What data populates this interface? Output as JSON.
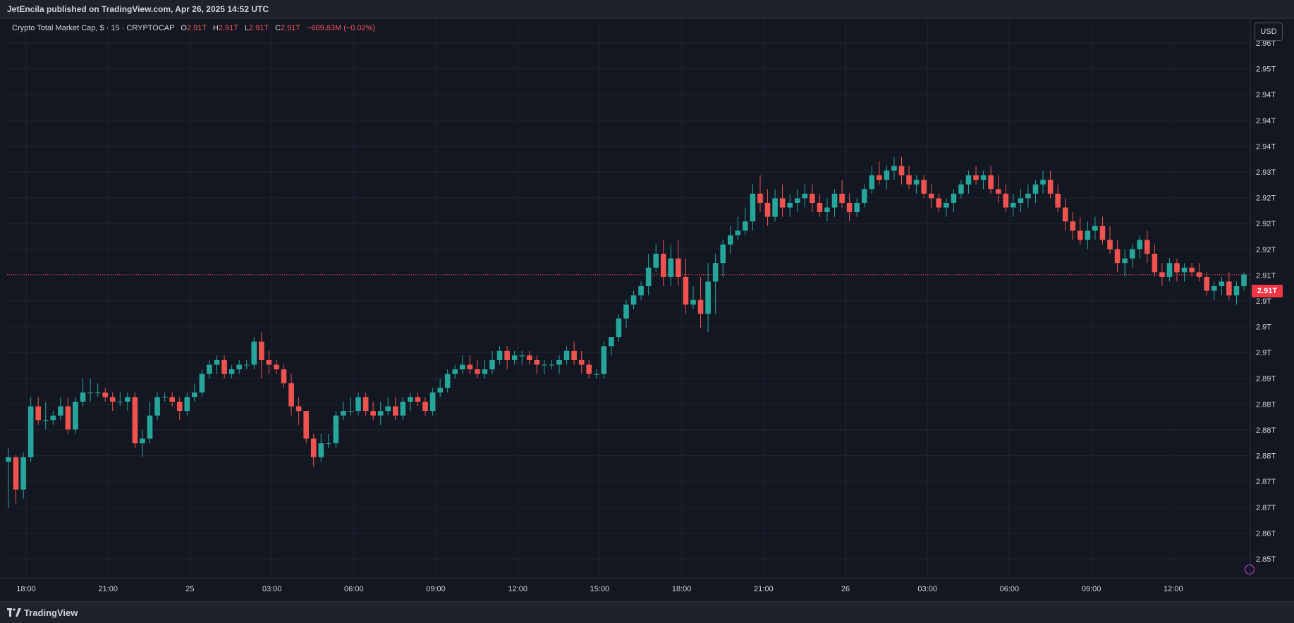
{
  "header": {
    "published_text": "JetEncila published on TradingView.com, Apr 26, 2025 14:52 UTC"
  },
  "legend": {
    "symbol": "Crypto Total Market Cap, $ · 15 · CRYPTOCAP",
    "o_label": "O",
    "o_value": "2.91T",
    "h_label": "H",
    "h_value": "2.91T",
    "l_label": "L",
    "l_value": "2.91T",
    "c_label": "C",
    "c_value": "2.91T",
    "change": "−609.83M (−0.02%)"
  },
  "currency": "USD",
  "last_price_label": "2.91T",
  "footer": {
    "brand": "TradingView"
  },
  "colors": {
    "up": "#26a69a",
    "down": "#ef5350",
    "background": "#131722",
    "grid": "#1f2430",
    "axis_text": "#d1d4dc",
    "last_price_line": "#f23645"
  },
  "chart_data": {
    "type": "candlestick",
    "symbol": "CRYPTOCAP:TOTAL",
    "interval": "15",
    "x_ticks": [
      "18:00",
      "21:00",
      "25",
      "03:00",
      "06:00",
      "09:00",
      "12:00",
      "15:00",
      "18:00",
      "21:00",
      "26",
      "03:00",
      "06:00",
      "09:00",
      "12:00"
    ],
    "y_ticks": [
      "2.96T",
      "2.95T",
      "2.94T",
      "2.94T",
      "2.94T",
      "2.93T",
      "2.92T",
      "2.92T",
      "2.92T",
      "2.91T",
      "2.9T",
      "2.9T",
      "2.9T",
      "2.89T",
      "2.88T",
      "2.88T",
      "2.88T",
      "2.87T",
      "2.87T",
      "2.86T",
      "2.85T"
    ],
    "y_units": "T",
    "last_price": 2.9105,
    "price_range": [
      2.849,
      2.9606
    ],
    "grid": true,
    "candles": [
      [
        2.87,
        2.873,
        2.86,
        2.871
      ],
      [
        2.871,
        2.8715,
        2.861,
        2.864
      ],
      [
        2.864,
        2.872,
        2.862,
        2.871
      ],
      [
        2.871,
        2.884,
        2.87,
        2.882
      ],
      [
        2.882,
        2.884,
        2.878,
        2.879
      ],
      [
        2.879,
        2.883,
        2.877,
        2.879
      ],
      [
        2.879,
        2.881,
        2.878,
        2.88
      ],
      [
        2.88,
        2.884,
        2.879,
        2.882
      ],
      [
        2.882,
        2.884,
        2.876,
        2.877
      ],
      [
        2.877,
        2.884,
        2.876,
        2.883
      ],
      [
        2.883,
        2.888,
        2.882,
        2.885
      ],
      [
        2.885,
        2.888,
        2.883,
        2.885
      ],
      [
        2.885,
        2.887,
        2.884,
        2.885
      ],
      [
        2.885,
        2.886,
        2.883,
        2.884
      ],
      [
        2.884,
        2.885,
        2.881,
        2.883
      ],
      [
        2.883,
        2.885,
        2.882,
        2.883
      ],
      [
        2.883,
        2.885,
        2.881,
        2.884
      ],
      [
        2.884,
        2.885,
        2.873,
        2.874
      ],
      [
        2.874,
        2.877,
        2.871,
        2.875
      ],
      [
        2.875,
        2.883,
        2.874,
        2.88
      ],
      [
        2.88,
        2.885,
        2.879,
        2.884
      ],
      [
        2.884,
        2.885,
        2.883,
        2.884
      ],
      [
        2.884,
        2.885,
        2.882,
        2.883
      ],
      [
        2.883,
        2.884,
        2.879,
        2.881
      ],
      [
        2.881,
        2.885,
        2.88,
        2.884
      ],
      [
        2.884,
        2.887,
        2.883,
        2.885
      ],
      [
        2.885,
        2.89,
        2.884,
        2.889
      ],
      [
        2.889,
        2.892,
        2.888,
        2.891
      ],
      [
        2.891,
        2.893,
        2.889,
        2.892
      ],
      [
        2.892,
        2.893,
        2.888,
        2.889
      ],
      [
        2.889,
        2.891,
        2.888,
        2.89
      ],
      [
        2.89,
        2.892,
        2.889,
        2.891
      ],
      [
        2.891,
        2.892,
        2.89,
        2.891
      ],
      [
        2.891,
        2.897,
        2.89,
        2.896
      ],
      [
        2.896,
        2.898,
        2.888,
        2.892
      ],
      [
        2.892,
        2.894,
        2.889,
        2.891
      ],
      [
        2.891,
        2.892,
        2.889,
        2.89
      ],
      [
        2.89,
        2.891,
        2.886,
        2.887
      ],
      [
        2.887,
        2.889,
        2.88,
        2.882
      ],
      [
        2.882,
        2.884,
        2.878,
        2.881
      ],
      [
        2.881,
        2.881,
        2.874,
        2.875
      ],
      [
        2.875,
        2.876,
        2.869,
        2.871
      ],
      [
        2.871,
        2.876,
        2.87,
        2.874
      ],
      [
        2.874,
        2.876,
        2.873,
        2.874
      ],
      [
        2.874,
        2.881,
        2.873,
        2.88
      ],
      [
        2.88,
        2.883,
        2.879,
        2.881
      ],
      [
        2.881,
        2.884,
        2.88,
        2.881
      ],
      [
        2.881,
        2.885,
        2.88,
        2.884
      ],
      [
        2.884,
        2.885,
        2.88,
        2.881
      ],
      [
        2.881,
        2.883,
        2.879,
        2.88
      ],
      [
        2.88,
        2.883,
        2.878,
        2.881
      ],
      [
        2.881,
        2.884,
        2.88,
        2.882
      ],
      [
        2.882,
        2.884,
        2.879,
        2.88
      ],
      [
        2.88,
        2.884,
        2.879,
        2.883
      ],
      [
        2.883,
        2.885,
        2.881,
        2.884
      ],
      [
        2.884,
        2.885,
        2.882,
        2.883
      ],
      [
        2.883,
        2.884,
        2.88,
        2.881
      ],
      [
        2.881,
        2.886,
        2.88,
        2.885
      ],
      [
        2.885,
        2.888,
        2.884,
        2.886
      ],
      [
        2.886,
        2.89,
        2.885,
        2.889
      ],
      [
        2.889,
        2.891,
        2.888,
        2.89
      ],
      [
        2.89,
        2.893,
        2.889,
        2.891
      ],
      [
        2.891,
        2.893,
        2.889,
        2.89
      ],
      [
        2.89,
        2.892,
        2.888,
        2.889
      ],
      [
        2.889,
        2.892,
        2.888,
        2.89
      ],
      [
        2.89,
        2.894,
        2.889,
        2.892
      ],
      [
        2.892,
        2.895,
        2.891,
        2.894
      ],
      [
        2.894,
        2.895,
        2.89,
        2.892
      ],
      [
        2.892,
        2.894,
        2.891,
        2.893
      ],
      [
        2.893,
        2.894,
        2.891,
        2.893
      ],
      [
        2.893,
        2.894,
        2.891,
        2.892
      ],
      [
        2.892,
        2.893,
        2.889,
        2.891
      ],
      [
        2.891,
        2.892,
        2.889,
        2.891
      ],
      [
        2.891,
        2.892,
        2.89,
        2.891
      ],
      [
        2.891,
        2.893,
        2.889,
        2.892
      ],
      [
        2.892,
        2.895,
        2.891,
        2.894
      ],
      [
        2.894,
        2.896,
        2.891,
        2.892
      ],
      [
        2.892,
        2.894,
        2.889,
        2.891
      ],
      [
        2.891,
        2.892,
        2.888,
        2.889
      ],
      [
        2.889,
        2.89,
        2.888,
        2.889
      ],
      [
        2.889,
        2.896,
        2.888,
        2.895
      ],
      [
        2.895,
        2.897,
        2.893,
        2.897
      ],
      [
        2.897,
        2.902,
        2.896,
        2.901
      ],
      [
        2.901,
        2.905,
        2.899,
        2.904
      ],
      [
        2.904,
        2.907,
        2.903,
        2.906
      ],
      [
        2.906,
        2.909,
        2.905,
        2.908
      ],
      [
        2.908,
        2.915,
        2.906,
        2.912
      ],
      [
        2.912,
        2.917,
        2.911,
        2.915
      ],
      [
        2.915,
        2.918,
        2.908,
        2.91
      ],
      [
        2.91,
        2.917,
        2.908,
        2.914
      ],
      [
        2.914,
        2.918,
        2.908,
        2.91
      ],
      [
        2.91,
        2.914,
        2.902,
        2.904
      ],
      [
        2.904,
        2.908,
        2.903,
        2.905
      ],
      [
        2.905,
        2.91,
        2.899,
        2.902
      ],
      [
        2.902,
        2.913,
        2.898,
        2.909
      ],
      [
        2.909,
        2.915,
        2.902,
        2.913
      ],
      [
        2.913,
        2.918,
        2.91,
        2.917
      ],
      [
        2.917,
        2.921,
        2.915,
        2.919
      ],
      [
        2.919,
        2.923,
        2.918,
        2.92
      ],
      [
        2.92,
        2.925,
        2.919,
        2.922
      ],
      [
        2.922,
        2.93,
        2.92,
        2.928
      ],
      [
        2.928,
        2.932,
        2.924,
        2.926
      ],
      [
        2.926,
        2.929,
        2.921,
        2.923
      ],
      [
        2.923,
        2.929,
        2.922,
        2.927
      ],
      [
        2.927,
        2.93,
        2.923,
        2.925
      ],
      [
        2.925,
        2.928,
        2.923,
        2.926
      ],
      [
        2.926,
        2.929,
        2.924,
        2.927
      ],
      [
        2.927,
        2.93,
        2.925,
        2.928
      ],
      [
        2.928,
        2.93,
        2.924,
        2.926
      ],
      [
        2.926,
        2.928,
        2.923,
        2.924
      ],
      [
        2.924,
        2.927,
        2.922,
        2.925
      ],
      [
        2.925,
        2.929,
        2.923,
        2.928
      ],
      [
        2.928,
        2.931,
        2.925,
        2.926
      ],
      [
        2.926,
        2.928,
        2.922,
        2.924
      ],
      [
        2.924,
        2.927,
        2.923,
        2.926
      ],
      [
        2.926,
        2.93,
        2.925,
        2.929
      ],
      [
        2.929,
        2.934,
        2.928,
        2.932
      ],
      [
        2.932,
        2.935,
        2.93,
        2.931
      ],
      [
        2.931,
        2.934,
        2.929,
        2.933
      ],
      [
        2.933,
        2.936,
        2.931,
        2.934
      ],
      [
        2.934,
        2.936,
        2.93,
        2.932
      ],
      [
        2.932,
        2.934,
        2.929,
        2.93
      ],
      [
        2.93,
        2.932,
        2.928,
        2.931
      ],
      [
        2.931,
        2.932,
        2.927,
        2.928
      ],
      [
        2.928,
        2.93,
        2.925,
        2.927
      ],
      [
        2.927,
        2.928,
        2.924,
        2.925
      ],
      [
        2.925,
        2.927,
        2.923,
        2.926
      ],
      [
        2.926,
        2.929,
        2.924,
        2.928
      ],
      [
        2.928,
        2.931,
        2.927,
        2.93
      ],
      [
        2.93,
        2.933,
        2.928,
        2.932
      ],
      [
        2.932,
        2.934,
        2.93,
        2.931
      ],
      [
        2.931,
        2.933,
        2.929,
        2.932
      ],
      [
        2.932,
        2.934,
        2.928,
        2.929
      ],
      [
        2.929,
        2.932,
        2.926,
        2.928
      ],
      [
        2.928,
        2.93,
        2.924,
        2.925
      ],
      [
        2.925,
        2.928,
        2.923,
        2.926
      ],
      [
        2.926,
        2.929,
        2.924,
        2.927
      ],
      [
        2.927,
        2.93,
        2.925,
        2.928
      ],
      [
        2.928,
        2.931,
        2.926,
        2.93
      ],
      [
        2.93,
        2.933,
        2.928,
        2.931
      ],
      [
        2.931,
        2.933,
        2.927,
        2.928
      ],
      [
        2.928,
        2.93,
        2.924,
        2.925
      ],
      [
        2.925,
        2.927,
        2.92,
        2.922
      ],
      [
        2.922,
        2.924,
        2.918,
        2.92
      ],
      [
        2.92,
        2.923,
        2.917,
        2.918
      ],
      [
        2.918,
        2.922,
        2.916,
        2.92
      ],
      [
        2.92,
        2.923,
        2.918,
        2.921
      ],
      [
        2.921,
        2.923,
        2.917,
        2.918
      ],
      [
        2.918,
        2.921,
        2.915,
        2.916
      ],
      [
        2.916,
        2.918,
        2.911,
        2.913
      ],
      [
        2.913,
        2.916,
        2.91,
        2.914
      ],
      [
        2.914,
        2.917,
        2.912,
        2.916
      ],
      [
        2.916,
        2.919,
        2.914,
        2.918
      ],
      [
        2.918,
        2.92,
        2.913,
        2.915
      ],
      [
        2.915,
        2.917,
        2.91,
        2.911
      ],
      [
        2.911,
        2.913,
        2.908,
        2.91
      ],
      [
        2.91,
        2.914,
        2.909,
        2.913
      ],
      [
        2.913,
        2.914,
        2.909,
        2.911
      ],
      [
        2.911,
        2.913,
        2.909,
        2.912
      ],
      [
        2.912,
        2.913,
        2.91,
        2.911
      ],
      [
        2.911,
        2.913,
        2.909,
        2.91
      ],
      [
        2.91,
        2.911,
        2.906,
        2.907
      ],
      [
        2.907,
        2.909,
        2.905,
        2.908
      ],
      [
        2.908,
        2.91,
        2.906,
        2.909
      ],
      [
        2.909,
        2.911,
        2.905,
        2.906
      ],
      [
        2.906,
        2.909,
        2.904,
        2.908
      ],
      [
        2.908,
        2.911,
        2.907,
        2.9105
      ]
    ]
  }
}
